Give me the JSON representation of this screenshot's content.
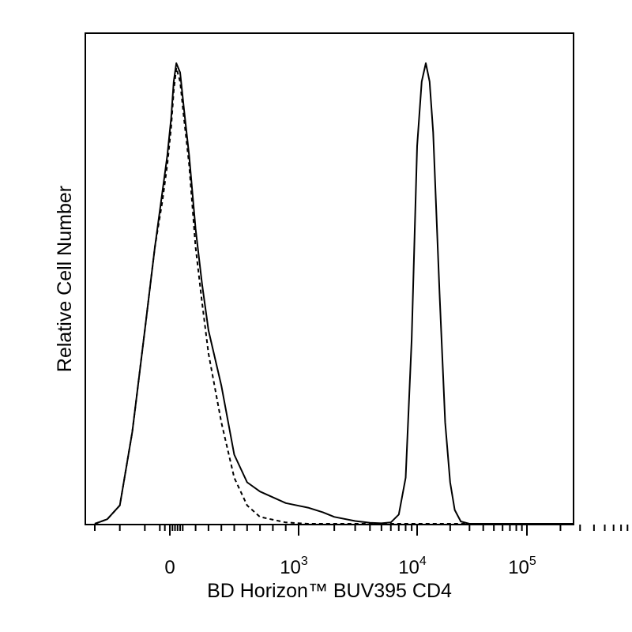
{
  "chart_data": {
    "type": "line",
    "title": "",
    "xlabel": "BD Horizon™ BUV395 CD4",
    "ylabel": "Relative Cell Number",
    "x_scale": "biexponential",
    "x_ticks": [
      {
        "value": 0,
        "label": "0"
      },
      {
        "value": 1000,
        "label": "10",
        "exponent": "3"
      },
      {
        "value": 10000,
        "label": "10",
        "exponent": "4"
      },
      {
        "value": 100000,
        "label": "10",
        "exponent": "5"
      }
    ],
    "xlim": [
      -300,
      262144
    ],
    "ylim": [
      0,
      100
    ],
    "y_ticks": [],
    "grid": false,
    "legend": "none",
    "series": [
      {
        "style": "solid",
        "points": [
          [
            -300,
            0
          ],
          [
            -250,
            1
          ],
          [
            -200,
            4
          ],
          [
            -150,
            20
          ],
          [
            -100,
            42
          ],
          [
            -60,
            60
          ],
          [
            -30,
            72
          ],
          [
            -10,
            80
          ],
          [
            10,
            88
          ],
          [
            30,
            96
          ],
          [
            50,
            100
          ],
          [
            80,
            98
          ],
          [
            110,
            90
          ],
          [
            150,
            80
          ],
          [
            200,
            64
          ],
          [
            250,
            52
          ],
          [
            300,
            42
          ],
          [
            400,
            30
          ],
          [
            500,
            15
          ],
          [
            600,
            9
          ],
          [
            700,
            7
          ],
          [
            900,
            4.5
          ],
          [
            1200,
            3.5
          ],
          [
            1600,
            2.5
          ],
          [
            2000,
            1.5
          ],
          [
            3000,
            0.6
          ],
          [
            4000,
            0.2
          ],
          [
            5000,
            0.1
          ],
          [
            6000,
            0.3
          ],
          [
            7000,
            2
          ],
          [
            8000,
            10
          ],
          [
            9000,
            40
          ],
          [
            10000,
            82
          ],
          [
            11000,
            96
          ],
          [
            12000,
            100
          ],
          [
            13000,
            96
          ],
          [
            14000,
            85
          ],
          [
            16000,
            50
          ],
          [
            18000,
            22
          ],
          [
            20000,
            9
          ],
          [
            22000,
            3
          ],
          [
            25000,
            0.5
          ],
          [
            30000,
            0
          ],
          [
            262144,
            0
          ]
        ]
      },
      {
        "style": "dashed",
        "points": [
          [
            -300,
            0
          ],
          [
            -250,
            1
          ],
          [
            -200,
            4
          ],
          [
            -150,
            20
          ],
          [
            -100,
            42
          ],
          [
            -60,
            60
          ],
          [
            -30,
            70
          ],
          [
            -10,
            78
          ],
          [
            10,
            86
          ],
          [
            30,
            94
          ],
          [
            50,
            99
          ],
          [
            80,
            96
          ],
          [
            110,
            88
          ],
          [
            150,
            78
          ],
          [
            200,
            60
          ],
          [
            250,
            48
          ],
          [
            300,
            37
          ],
          [
            400,
            22
          ],
          [
            500,
            10
          ],
          [
            600,
            4
          ],
          [
            700,
            1.5
          ],
          [
            900,
            0.3
          ],
          [
            1200,
            0
          ],
          [
            262144,
            0
          ]
        ]
      }
    ]
  }
}
